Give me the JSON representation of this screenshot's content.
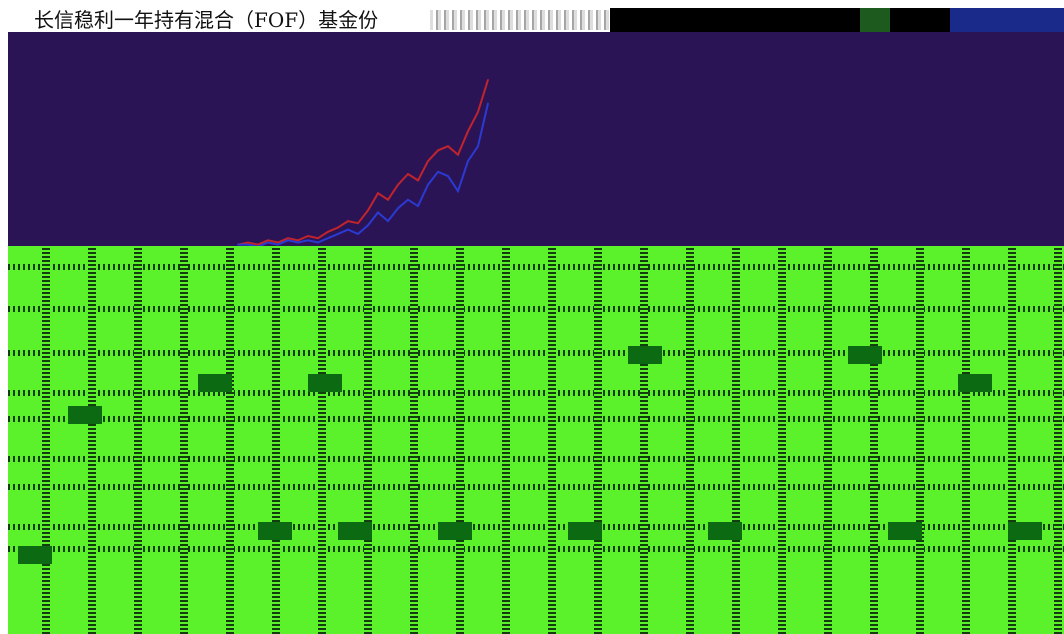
{
  "header": {
    "title": "长信稳利一年持有混合（FOF）基金份"
  },
  "chart_data": {
    "type": "line",
    "x": [
      0,
      1,
      2,
      3,
      4,
      5,
      6,
      7,
      8,
      9,
      10,
      11,
      12,
      13,
      14,
      15,
      16,
      17,
      18,
      19,
      20,
      21,
      22,
      23,
      24,
      25
    ],
    "series": [
      {
        "values": [
          0.0,
          0.1,
          0.0,
          0.2,
          0.1,
          0.3,
          0.2,
          0.4,
          0.3,
          0.6,
          0.8,
          1.1,
          1.0,
          1.6,
          2.4,
          2.1,
          2.8,
          3.3,
          3.0,
          3.9,
          4.4,
          4.6,
          4.2,
          5.3,
          6.2,
          7.7
        ],
        "color": "#c0242d"
      },
      {
        "values": [
          0.0,
          0.0,
          -0.1,
          0.1,
          0.0,
          0.2,
          0.1,
          0.2,
          0.1,
          0.3,
          0.5,
          0.7,
          0.5,
          0.9,
          1.5,
          1.1,
          1.7,
          2.1,
          1.8,
          2.8,
          3.4,
          3.2,
          2.5,
          3.9,
          4.6,
          6.6
        ],
        "color": "#2a3ad2"
      }
    ],
    "ylim": [
      -1,
      9
    ],
    "grid": false
  },
  "colors": {
    "chart_background": "#2b1455",
    "table_background": "#5cf22b"
  }
}
